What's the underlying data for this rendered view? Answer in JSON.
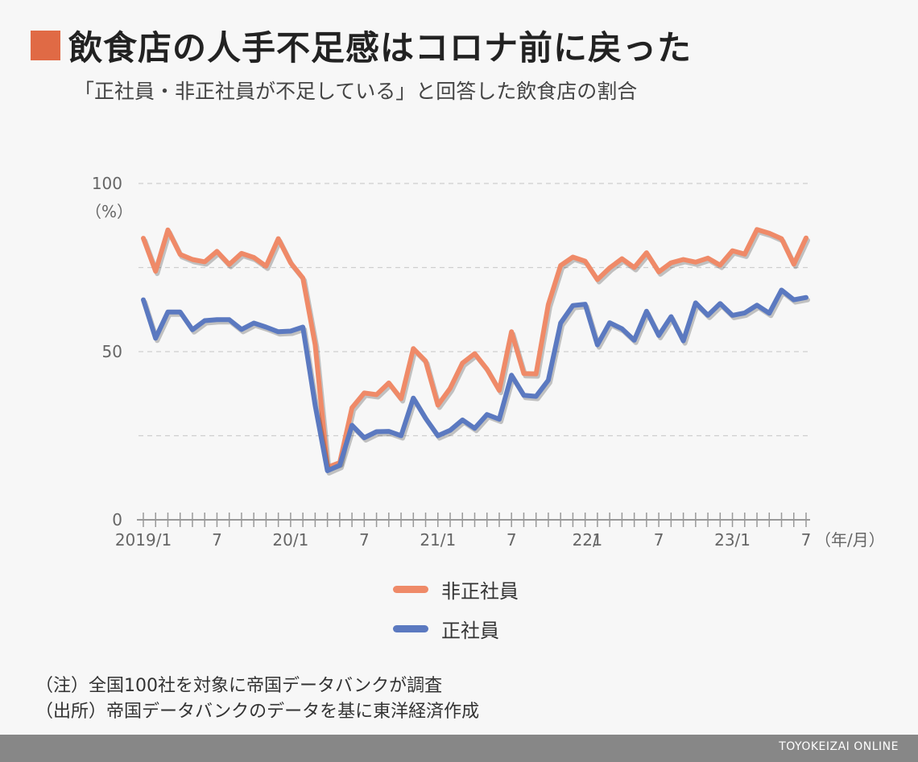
{
  "header": {
    "title": "飲食店の人手不足感はコロナ前に戻った",
    "subtitle": "「正社員・非正社員が不足している」と回答した飲食店の割合",
    "title_mark_color": "#e06a45"
  },
  "chart_data": {
    "type": "line",
    "title": "飲食店の人手不足感はコロナ前に戻った",
    "subtitle": "「正社員・非正社員が不足している」と回答した飲食店の割合",
    "ylabel": "（%）",
    "xlabel": "（年/月）",
    "ylim": [
      0,
      100
    ],
    "y_ticks": [
      0,
      50,
      100
    ],
    "y_gridlines": [
      25,
      50,
      75,
      100
    ],
    "x_tick_labels": [
      {
        "index": 0,
        "label": "2019/1"
      },
      {
        "index": 6,
        "label": "7"
      },
      {
        "index": 12,
        "label": "20/1"
      },
      {
        "index": 18,
        "label": "7"
      },
      {
        "index": 24,
        "label": "21/1"
      },
      {
        "index": 30,
        "label": "7"
      },
      {
        "index": 36,
        "label": "22/"
      },
      {
        "index": 37,
        "label": "1"
      },
      {
        "index": 42,
        "label": "7"
      },
      {
        "index": 48,
        "label": "23/1"
      },
      {
        "index": 54,
        "label": "7"
      }
    ],
    "x_count": 55,
    "grid": true,
    "legend_position": "bottom-center",
    "series": [
      {
        "name": "非正社員",
        "color": "#ef8a68",
        "values": [
          83.7,
          73.9,
          86.2,
          78.9,
          77.4,
          76.7,
          79.8,
          75.9,
          79.2,
          78.0,
          75.4,
          83.6,
          76.4,
          71.9,
          52.0,
          15.6,
          17.0,
          33.3,
          37.7,
          37.2,
          40.7,
          36.0,
          50.9,
          47.2,
          34.1,
          39.1,
          46.6,
          49.4,
          44.8,
          38.5,
          55.9,
          43.5,
          43.4,
          64.0,
          75.6,
          78.1,
          76.9,
          71.4,
          74.9,
          77.6,
          75.0,
          79.4,
          73.7,
          76.4,
          77.4,
          76.6,
          77.8,
          75.7,
          80.0,
          79.0,
          86.3,
          85.2,
          83.6,
          76.0,
          83.8
        ]
      },
      {
        "name": "正社員",
        "color": "#5b79c0",
        "values": [
          65.4,
          54.0,
          61.8,
          61.8,
          56.5,
          59.2,
          59.5,
          59.5,
          56.6,
          58.5,
          57.3,
          55.9,
          56.1,
          57.3,
          34.0,
          14.6,
          16.2,
          28.1,
          24.4,
          26.2,
          26.3,
          25.0,
          36.2,
          30.2,
          25.0,
          26.6,
          29.7,
          27.2,
          31.3,
          29.9,
          43.0,
          37.0,
          36.7,
          41.5,
          58.5,
          63.7,
          64.1,
          52.0,
          58.6,
          56.8,
          53.4,
          62.0,
          54.8,
          60.4,
          53.2,
          64.5,
          60.8,
          64.3,
          60.8,
          61.5,
          63.8,
          61.4,
          68.3,
          65.4,
          66.1
        ]
      }
    ]
  },
  "legend": {
    "items": [
      {
        "label": "非正社員",
        "color": "#ef8a68"
      },
      {
        "label": "正社員",
        "color": "#5b79c0"
      }
    ]
  },
  "notes": {
    "note1": "（注）全国100社を対象に帝国データバンクが調査",
    "note2": "（出所）帝国データバンクのデータを基に東洋経済作成"
  },
  "footer": {
    "credit": "TOYOKEIZAI ONLINE",
    "bar_color": "#878787"
  }
}
